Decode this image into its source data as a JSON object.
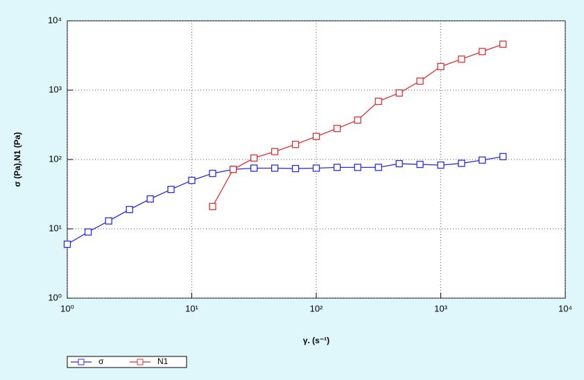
{
  "chart_data": {
    "type": "line",
    "xlabel": "γ. (s⁻¹)",
    "ylabel": "σ (Pa),N1 (Pa)",
    "x": [
      1,
      1.47,
      2.15,
      3.16,
      4.64,
      6.81,
      10,
      14.7,
      21.5,
      31.6,
      46.4,
      68.1,
      100,
      147,
      215,
      316,
      464,
      681,
      1000,
      1468,
      2154,
      3162
    ],
    "series": [
      {
        "name": "σ",
        "color": "#2a2ae8",
        "values": [
          6,
          9,
          13,
          19,
          27,
          37,
          50,
          63,
          72,
          75,
          75,
          74,
          75,
          77,
          77,
          77,
          87,
          85,
          83,
          88,
          98,
          110
        ]
      },
      {
        "name": "N1",
        "color": "#e03030",
        "values": [
          null,
          null,
          null,
          null,
          null,
          null,
          null,
          21,
          72,
          105,
          130,
          165,
          215,
          280,
          370,
          690,
          910,
          1350,
          2190,
          2800,
          3600,
          4600
        ]
      }
    ],
    "xscale": "log",
    "yscale": "log",
    "xlim": [
      1,
      10000
    ],
    "ylim": [
      1,
      10000
    ],
    "xticks": [
      {
        "value": 1,
        "label": "10⁰"
      },
      {
        "value": 10,
        "label": "10¹"
      },
      {
        "value": 100,
        "label": "10²"
      },
      {
        "value": 1000,
        "label": "10³"
      },
      {
        "value": 10000,
        "label": "10⁴"
      }
    ],
    "yticks": [
      {
        "value": 1,
        "label": "10⁰"
      },
      {
        "value": 10,
        "label": "10¹"
      },
      {
        "value": 100,
        "label": "10²"
      },
      {
        "value": 1000,
        "label": "10³"
      },
      {
        "value": 10000,
        "label": "10⁴"
      }
    ],
    "grid": true,
    "legend": "bottom-left"
  }
}
